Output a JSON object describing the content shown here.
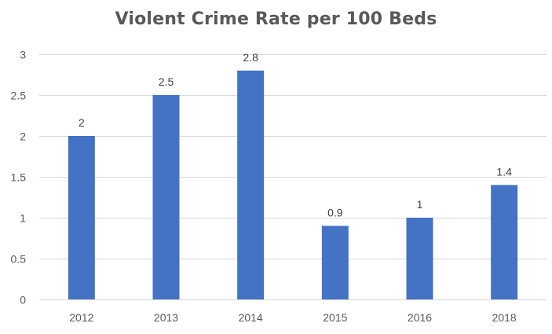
{
  "chart_data": {
    "type": "bar",
    "title": "Violent Crime Rate per 100 Beds",
    "xlabel": "",
    "ylabel": "",
    "categories": [
      "2012",
      "2013",
      "2014",
      "2015",
      "2016",
      "2018"
    ],
    "values": [
      2,
      2.5,
      2.8,
      0.9,
      1,
      1.4
    ],
    "data_labels": [
      "2",
      "2.5",
      "2.8",
      "0.9",
      "1",
      "1.4"
    ],
    "ylim": [
      0,
      3
    ],
    "yticks": [
      0,
      0.5,
      1,
      1.5,
      2,
      2.5,
      3
    ],
    "ytick_labels": [
      "0",
      "0.5",
      "1",
      "1.5",
      "2",
      "2.5",
      "3"
    ],
    "grid": true,
    "legend": "none",
    "colors": {
      "bar": "#4472c4",
      "grid": "#d9d9d9",
      "text": "#595959"
    }
  }
}
